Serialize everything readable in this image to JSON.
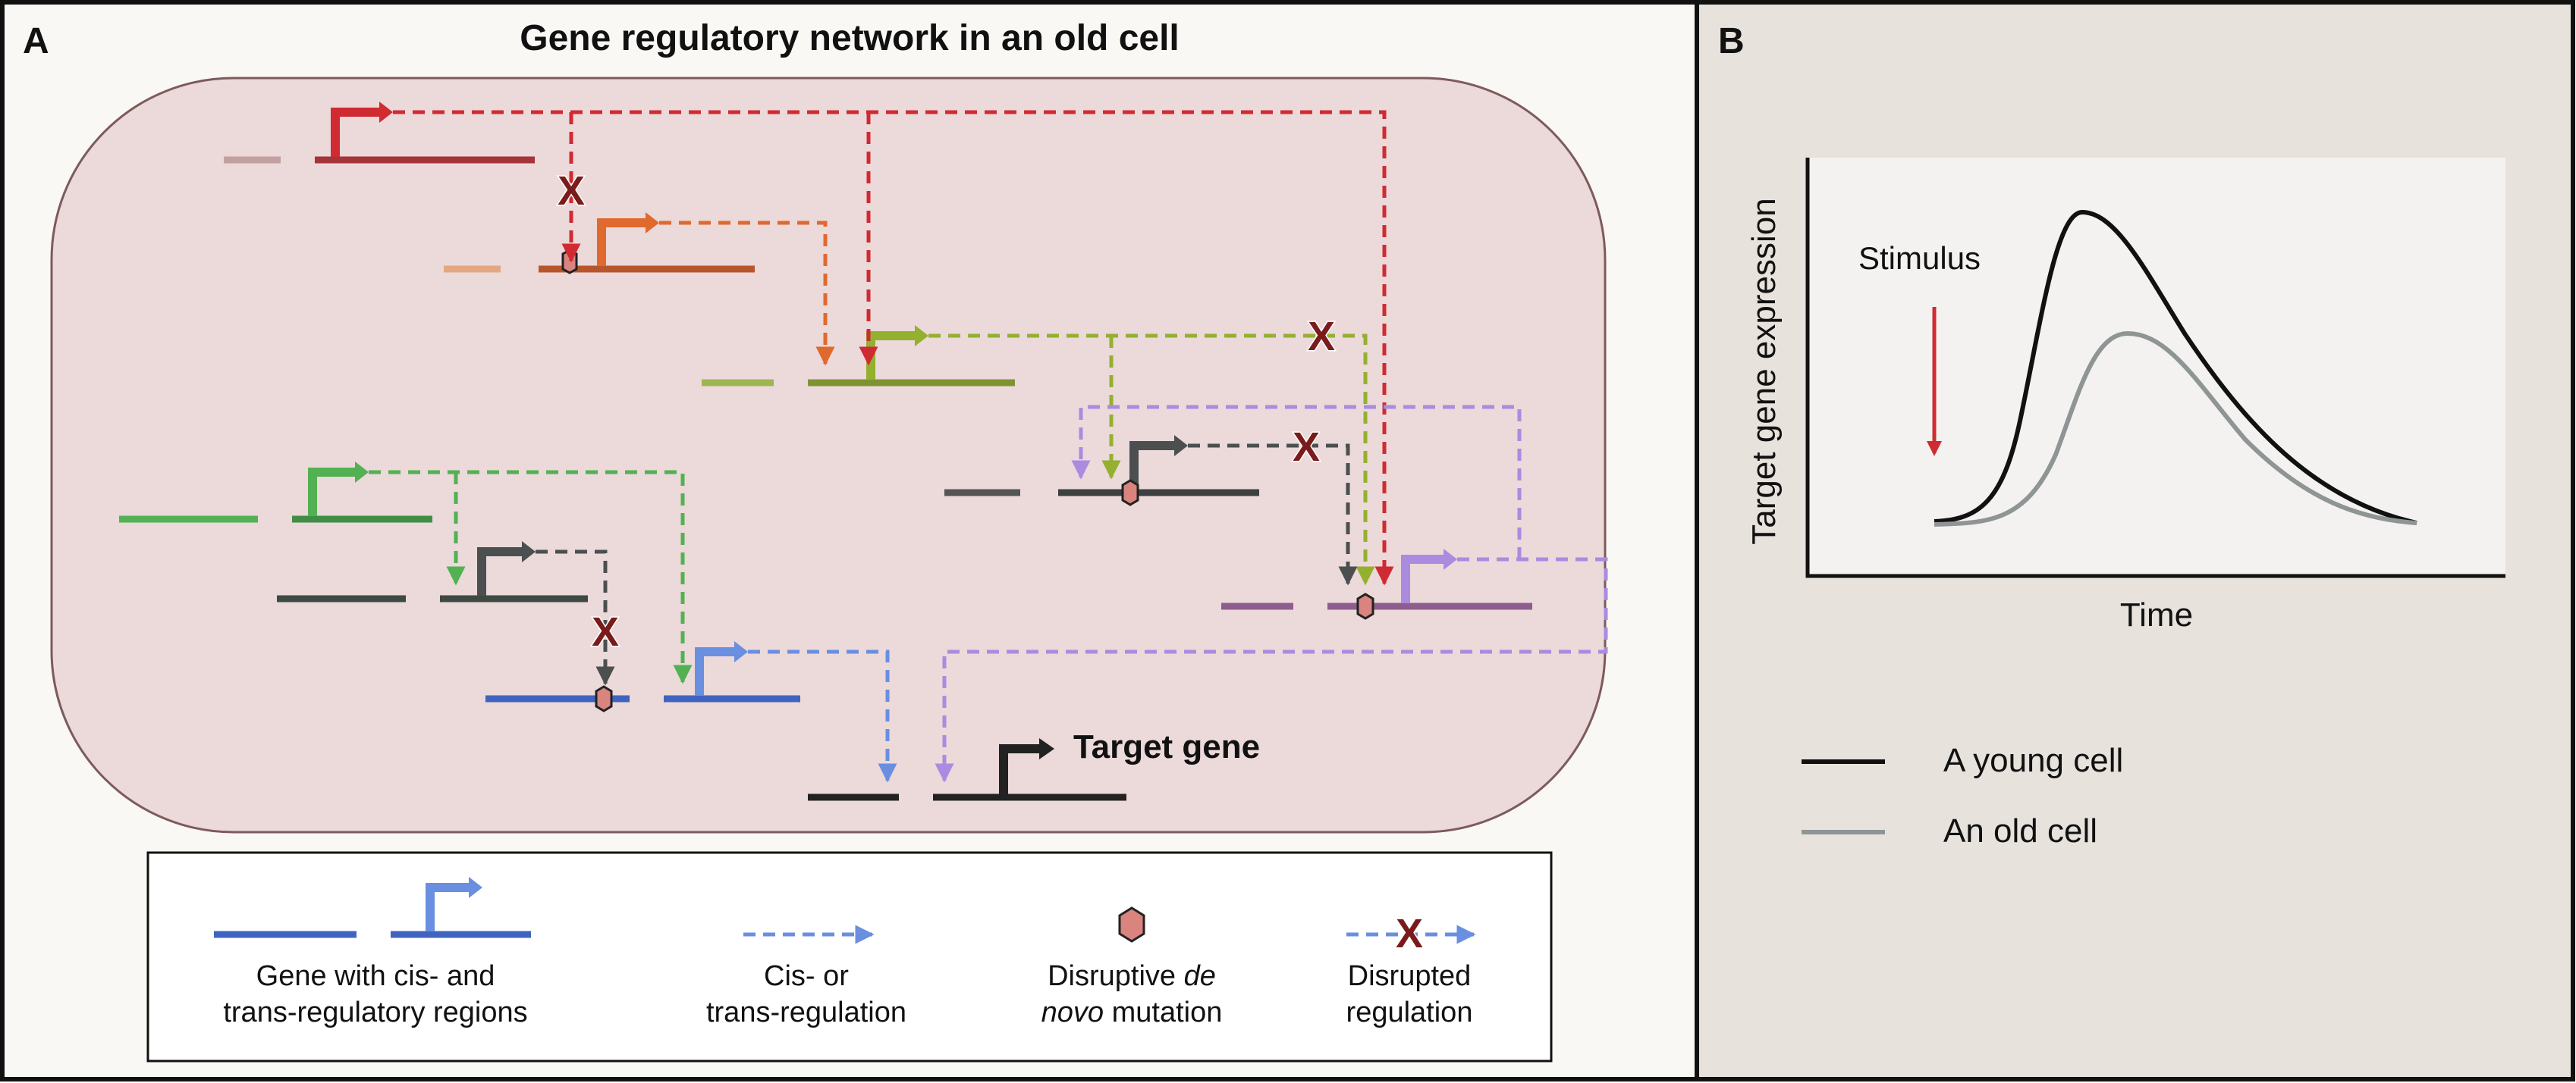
{
  "panel_a": {
    "letter": "A",
    "title": "Gene regulatory network in an old cell",
    "target_label": "Target gene",
    "legend": {
      "gene_line1": "Gene with cis- and",
      "gene_line2": "trans-regulatory regions",
      "reg_line1": "Cis- or",
      "reg_line2": "trans-regulation",
      "mut_line1_pre": "Disruptive ",
      "mut_line1_em": "de",
      "mut_line2_em": "novo",
      "mut_line2_post": " mutation",
      "dis_line1": "Disrupted",
      "dis_line2": "regulation"
    }
  },
  "panel_b": {
    "letter": "B",
    "ylabel": "Target gene expression",
    "xlabel": "Time",
    "stimulus": "Stimulus",
    "legend_young": "A young cell",
    "legend_old": "An old cell"
  },
  "colors": {
    "red": "#d02a33",
    "orange": "#e0692d",
    "lime": "#93b02f",
    "green": "#52b152",
    "dark": "#4b4f4f",
    "blue": "#6a8fe0",
    "purple": "#a98ce0",
    "mutation": "#d9847f",
    "x_mark": "#7a1b1b",
    "cell_fill": "#ecd9da",
    "panel_b_bg": "#e7e2dc",
    "young": "#111111",
    "old": "#8e9594"
  },
  "icons": {
    "promoter": "promoter-arrow-icon",
    "mutation": "hexagon-mutation-icon",
    "disrupt": "x-mark-icon"
  }
}
